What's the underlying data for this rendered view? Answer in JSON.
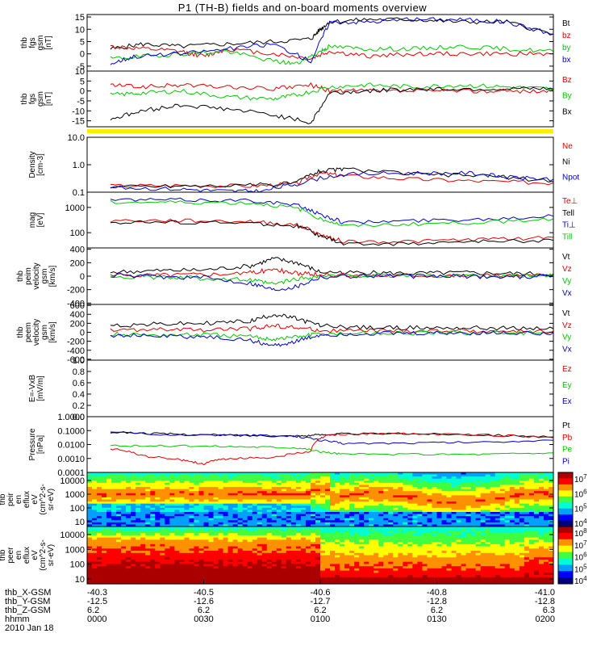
{
  "title": "P1 (TH-B) fields and on-board moments overview",
  "colors": {
    "black": "#000000",
    "red": "#e00000",
    "green": "#00c800",
    "blue": "#0000c8",
    "yellow": "#ffee00",
    "spec_bg": "#000033"
  },
  "chart_data": [
    {
      "type": "line",
      "panel": "fgs_gsm",
      "ylabel": [
        "thb",
        "fgs",
        "gsm",
        "[nT]"
      ],
      "yticks": [
        "15",
        "10",
        "5",
        "0",
        "-5"
      ],
      "ylim": [
        -7,
        16
      ],
      "series": [
        {
          "name": "Bt",
          "color": "#000000",
          "x": [
            0.05,
            0.12,
            0.2,
            0.3,
            0.4,
            0.48,
            0.5,
            0.52,
            0.6,
            0.7,
            0.8,
            0.9,
            1.0
          ],
          "y": [
            2,
            4,
            3,
            4,
            5,
            6,
            10,
            13,
            14,
            14,
            13,
            13,
            8
          ]
        },
        {
          "name": "bz",
          "color": "#e00000",
          "x": [
            0.05,
            0.12,
            0.2,
            0.25,
            0.3,
            0.4,
            0.48,
            0.52,
            0.6,
            0.7,
            0.8,
            0.9,
            1.0
          ],
          "y": [
            3,
            2,
            1,
            -1,
            2,
            0,
            -2,
            1,
            -1,
            0,
            0,
            0,
            0
          ]
        },
        {
          "name": "by",
          "color": "#00c800",
          "x": [
            0.05,
            0.12,
            0.2,
            0.3,
            0.4,
            0.45,
            0.5,
            0.52,
            0.6,
            0.7,
            0.8,
            0.9,
            1.0
          ],
          "y": [
            -2,
            -1,
            0,
            1,
            -3,
            -4,
            1,
            3,
            2,
            2,
            3,
            2,
            1
          ]
        },
        {
          "name": "bx",
          "color": "#0000c8",
          "x": [
            0.05,
            0.1,
            0.2,
            0.3,
            0.4,
            0.48,
            0.52,
            0.6,
            0.7,
            0.8,
            0.9,
            1.0
          ],
          "y": [
            -4,
            -1,
            0,
            2,
            4,
            -3,
            13,
            13,
            14,
            14,
            13,
            8
          ]
        }
      ],
      "legend": [
        {
          "label": "Bt",
          "color": "#000000"
        },
        {
          "label": "bz",
          "color": "#e00000"
        },
        {
          "label": "by",
          "color": "#00c800"
        },
        {
          "label": "bx",
          "color": "#0000c8"
        }
      ]
    },
    {
      "type": "line",
      "panel": "fgs_gsm2",
      "ylabel": [
        "thb",
        "fgs",
        "gsm",
        "[nT]"
      ],
      "yticks": [
        "10",
        "5",
        "0",
        "-5",
        "-10",
        "-15"
      ],
      "ylim": [
        -18,
        10
      ],
      "series": [
        {
          "name": "Bz",
          "color": "#e00000",
          "x": [
            0.05,
            0.12,
            0.2,
            0.3,
            0.4,
            0.48,
            0.52,
            0.6,
            0.7,
            0.8,
            0.9,
            1.0
          ],
          "y": [
            3,
            2,
            3,
            2,
            1,
            3,
            0,
            0,
            0,
            0,
            0,
            0
          ]
        },
        {
          "name": "By",
          "color": "#00c800",
          "x": [
            0.05,
            0.12,
            0.2,
            0.3,
            0.4,
            0.45,
            0.52,
            0.6,
            0.7,
            0.8,
            0.9,
            1.0
          ],
          "y": [
            -2,
            -1,
            0,
            -3,
            -4,
            -2,
            2,
            3,
            2,
            3,
            2,
            1
          ]
        },
        {
          "name": "Bx",
          "color": "#000000",
          "x": [
            0.05,
            0.12,
            0.2,
            0.3,
            0.4,
            0.48,
            0.52,
            0.6,
            0.7,
            0.8,
            0.9,
            1.0
          ],
          "y": [
            -14,
            -10,
            -7,
            -9,
            -12,
            -16,
            -1,
            0,
            1,
            1,
            1,
            1
          ]
        }
      ],
      "legend": [
        {
          "label": "Bz",
          "color": "#e00000"
        },
        {
          "label": "By",
          "color": "#00c800"
        },
        {
          "label": "Bx",
          "color": "#000000"
        }
      ]
    },
    {
      "type": "line",
      "panel": "density",
      "log": true,
      "ylabel": [
        "Density",
        "[cm-3]"
      ],
      "yticks": [
        "10.0",
        "1.0",
        "0.1"
      ],
      "ylim": [
        0.1,
        10
      ],
      "series": [
        {
          "name": "Ne",
          "color": "#e00000",
          "x": [
            0.05,
            0.2,
            0.35,
            0.45,
            0.5,
            0.55,
            0.7,
            0.85,
            1.0
          ],
          "y": [
            0.17,
            0.18,
            0.17,
            0.2,
            0.5,
            0.4,
            0.3,
            0.25,
            0.22
          ]
        },
        {
          "name": "Ni",
          "color": "#000000",
          "x": [
            0.05,
            0.2,
            0.35,
            0.45,
            0.5,
            0.55,
            0.7,
            0.85,
            1.0
          ],
          "y": [
            0.16,
            0.17,
            0.18,
            0.22,
            0.6,
            0.7,
            0.45,
            0.4,
            0.25
          ]
        },
        {
          "name": "Npot",
          "color": "#0000c8",
          "x": [
            0.05,
            0.2,
            0.3,
            0.38,
            0.45,
            0.55,
            0.7,
            0.82,
            0.9,
            1.0
          ],
          "y": [
            0.15,
            0.13,
            0.11,
            0.11,
            0.2,
            0.45,
            0.5,
            0.5,
            0.35,
            0.3
          ]
        }
      ],
      "legend": [
        {
          "label": "Ne",
          "color": "#e00000"
        },
        {
          "label": "Ni",
          "color": "#000000"
        },
        {
          "label": "Npot",
          "color": "#0000c8"
        }
      ]
    },
    {
      "type": "line",
      "panel": "temperature",
      "log": true,
      "ylabel": [
        "mag",
        "[eV]"
      ],
      "yticks": [
        "1000",
        "100"
      ],
      "ylim": [
        25,
        4000
      ],
      "series": [
        {
          "name": "Te⊥",
          "color": "#e00000",
          "x": [
            0.05,
            0.2,
            0.35,
            0.45,
            0.5,
            0.55,
            0.7,
            0.85,
            1.0
          ],
          "y": [
            300,
            300,
            280,
            200,
            80,
            45,
            45,
            55,
            65
          ]
        },
        {
          "name": "Tell",
          "color": "#000000",
          "x": [
            0.05,
            0.2,
            0.35,
            0.45,
            0.5,
            0.55,
            0.7,
            0.85,
            1.0
          ],
          "y": [
            260,
            260,
            240,
            180,
            70,
            35,
            38,
            45,
            50
          ]
        },
        {
          "name": "Ti⊥",
          "color": "#0000c8",
          "x": [
            0.05,
            0.2,
            0.35,
            0.45,
            0.5,
            0.55,
            0.7,
            0.85,
            1.0
          ],
          "y": [
            2000,
            2000,
            1900,
            1200,
            500,
            250,
            300,
            350,
            450
          ]
        },
        {
          "name": "Till",
          "color": "#00c800",
          "x": [
            0.05,
            0.2,
            0.35,
            0.45,
            0.5,
            0.55,
            0.7,
            0.85,
            1.0
          ],
          "y": [
            1600,
            1600,
            1500,
            900,
            350,
            180,
            220,
            260,
            350
          ]
        }
      ],
      "legend": [
        {
          "label": "Te⊥",
          "color": "#e00000"
        },
        {
          "label": "Tell",
          "color": "#000000"
        },
        {
          "label": "Ti⊥",
          "color": "#0000c8"
        },
        {
          "label": "Till",
          "color": "#00c800"
        }
      ]
    },
    {
      "type": "line",
      "panel": "velocity",
      "ylabel": [
        "thb",
        "peim",
        "velocity",
        "gsm",
        "[km/s]"
      ],
      "yticks": [
        "400",
        "200",
        "0",
        "-200",
        "-400"
      ],
      "ylim": [
        -420,
        420
      ],
      "series": [
        {
          "name": "Vt",
          "color": "#000000",
          "x": [
            0.05,
            0.15,
            0.25,
            0.35,
            0.4,
            0.45,
            0.5,
            0.6,
            0.7,
            0.8,
            0.9,
            1.0
          ],
          "y": [
            60,
            80,
            90,
            150,
            260,
            200,
            60,
            50,
            40,
            50,
            40,
            30
          ]
        },
        {
          "name": "Vz",
          "color": "#e00000",
          "x": [
            0.05,
            0.15,
            0.25,
            0.35,
            0.4,
            0.45,
            0.5,
            0.6,
            0.7,
            0.8,
            0.9,
            1.0
          ],
          "y": [
            10,
            20,
            30,
            50,
            100,
            40,
            20,
            10,
            20,
            10,
            10,
            5
          ]
        },
        {
          "name": "Vy",
          "color": "#00c800",
          "x": [
            0.05,
            0.15,
            0.25,
            0.35,
            0.4,
            0.45,
            0.5,
            0.6,
            0.7,
            0.8,
            0.9,
            1.0
          ],
          "y": [
            0,
            -20,
            -30,
            -60,
            -120,
            -40,
            0,
            10,
            0,
            10,
            0,
            5
          ]
        },
        {
          "name": "Vx",
          "color": "#0000c8",
          "x": [
            0.05,
            0.15,
            0.25,
            0.35,
            0.4,
            0.45,
            0.5,
            0.6,
            0.7,
            0.8,
            0.9,
            1.0
          ],
          "y": [
            10,
            -10,
            -20,
            -100,
            -200,
            -150,
            -10,
            10,
            0,
            0,
            -10,
            0
          ]
        }
      ],
      "legend": [
        {
          "label": "Vt",
          "color": "#000000"
        },
        {
          "label": "Vz",
          "color": "#e00000"
        },
        {
          "label": "Vy",
          "color": "#00c800"
        },
        {
          "label": "Vx",
          "color": "#0000c8"
        }
      ]
    },
    {
      "type": "line",
      "panel": "velocity2",
      "ylabel": [
        "thb",
        "peem",
        "velocity",
        "gsm",
        "[km/s]"
      ],
      "yticks": [
        "600",
        "400",
        "200",
        "0",
        "-200",
        "-400",
        "-600"
      ],
      "ylim": [
        -620,
        620
      ],
      "series": [
        {
          "name": "Vt",
          "color": "#000000",
          "x": [
            0.05,
            0.15,
            0.25,
            0.35,
            0.4,
            0.45,
            0.5,
            0.6,
            0.7,
            0.8,
            0.9,
            1.0
          ],
          "y": [
            150,
            180,
            200,
            250,
            400,
            300,
            150,
            100,
            100,
            100,
            90,
            80
          ]
        },
        {
          "name": "Vz",
          "color": "#e00000",
          "x": [
            0.05,
            0.15,
            0.25,
            0.35,
            0.4,
            0.45,
            0.5,
            0.6,
            0.7,
            0.8,
            0.9,
            1.0
          ],
          "y": [
            40,
            60,
            50,
            80,
            150,
            100,
            40,
            30,
            30,
            30,
            20,
            20
          ]
        },
        {
          "name": "Vy",
          "color": "#00c800",
          "x": [
            0.05,
            0.15,
            0.25,
            0.35,
            0.4,
            0.45,
            0.5,
            0.6,
            0.7,
            0.8,
            0.9,
            1.0
          ],
          "y": [
            -40,
            -60,
            -50,
            -100,
            -150,
            -100,
            -30,
            -20,
            -20,
            -10,
            -10,
            -10
          ]
        },
        {
          "name": "Vx",
          "color": "#0000c8",
          "x": [
            0.05,
            0.15,
            0.25,
            0.35,
            0.4,
            0.45,
            0.5,
            0.6,
            0.7,
            0.8,
            0.9,
            1.0
          ],
          "y": [
            -60,
            -80,
            -100,
            -180,
            -300,
            -200,
            -60,
            -30,
            -30,
            -20,
            -20,
            -10
          ]
        }
      ],
      "legend": [
        {
          "label": "Vt",
          "color": "#000000"
        },
        {
          "label": "Vz",
          "color": "#e00000"
        },
        {
          "label": "Vy",
          "color": "#00c800"
        },
        {
          "label": "Vx",
          "color": "#0000c8"
        }
      ]
    },
    {
      "type": "line",
      "panel": "efield",
      "ylabel": [
        "E=-VxB",
        "[mV/m]"
      ],
      "yticks": [
        "1.0",
        "0.8",
        "0.6",
        "0.4",
        "0.2",
        "0.0"
      ],
      "ylim": [
        0,
        1
      ],
      "series": [],
      "legend": [
        {
          "label": "Ez",
          "color": "#e00000"
        },
        {
          "label": "Ey",
          "color": "#00c800"
        },
        {
          "label": "Ex",
          "color": "#0000c8"
        }
      ]
    },
    {
      "type": "line",
      "panel": "pressure",
      "log": true,
      "ylabel": [
        "Pressure",
        "[nPa]"
      ],
      "yticks": [
        "1.0000",
        "0.1000",
        "0.0100",
        "0.0010",
        "0.0001"
      ],
      "ylim": [
        0.0001,
        1
      ],
      "series": [
        {
          "name": "Pt",
          "color": "#000000",
          "x": [
            0.05,
            0.15,
            0.25,
            0.35,
            0.45,
            0.5,
            0.55,
            0.7,
            0.85,
            1.0
          ],
          "y": [
            0.08,
            0.06,
            0.05,
            0.045,
            0.04,
            0.05,
            0.06,
            0.06,
            0.05,
            0.035
          ]
        },
        {
          "name": "Pb",
          "color": "#e00000",
          "x": [
            0.05,
            0.12,
            0.2,
            0.25,
            0.3,
            0.4,
            0.48,
            0.52,
            0.6,
            0.7,
            0.85,
            1.0
          ],
          "y": [
            0.005,
            0.0015,
            0.0008,
            0.0004,
            0.001,
            0.0012,
            0.003,
            0.05,
            0.06,
            0.06,
            0.05,
            0.03
          ]
        },
        {
          "name": "Pe",
          "color": "#00c800",
          "x": [
            0.05,
            0.2,
            0.35,
            0.45,
            0.5,
            0.55,
            0.7,
            0.85,
            1.0
          ],
          "y": [
            0.008,
            0.008,
            0.007,
            0.006,
            0.003,
            0.002,
            0.002,
            0.002,
            0.0025
          ]
        },
        {
          "name": "Pi",
          "color": "#0000c8",
          "x": [
            0.05,
            0.2,
            0.35,
            0.45,
            0.5,
            0.55,
            0.7,
            0.85,
            1.0
          ],
          "y": [
            0.07,
            0.05,
            0.045,
            0.04,
            0.02,
            0.012,
            0.013,
            0.015,
            0.02
          ]
        }
      ],
      "legend": [
        {
          "label": "Pt",
          "color": "#000000"
        },
        {
          "label": "Pb",
          "color": "#e00000"
        },
        {
          "label": "Pe",
          "color": "#00c800"
        },
        {
          "label": "Pi",
          "color": "#0000c8"
        }
      ]
    },
    {
      "type": "heatmap",
      "panel": "ion_spectrogram",
      "ylabel": [
        "thb",
        "peir",
        "en",
        "eflux",
        "eV",
        "(cm^2-s-",
        "sr-eV)"
      ],
      "yticks": [
        "10000",
        "1000",
        "100",
        "10"
      ],
      "colorbar_ticks": [
        "10^7",
        "10^6",
        "10^5",
        "10^4"
      ]
    },
    {
      "type": "heatmap",
      "panel": "electron_spectrogram",
      "ylabel": [
        "thb",
        "peer",
        "en",
        "eflux",
        "eV",
        "(cm^2-s-",
        "sr-eV)"
      ],
      "yticks": [
        "10000",
        "1000",
        "100",
        "10"
      ],
      "colorbar_ticks": [
        "10^8",
        "10^7",
        "10^6",
        "10^5",
        "10^4"
      ]
    }
  ],
  "orbit_labels": [
    "thb_X-GSM",
    "thb_Y-GSM",
    "thb_Z-GSM",
    "hhmm",
    "2010 Jan 18"
  ],
  "orbit_columns": [
    {
      "x": "-40.3",
      "y": "-12.5",
      "z": "6.2",
      "t": "0000"
    },
    {
      "x": "-40.5",
      "y": "-12.6",
      "z": "6.2",
      "t": "0030"
    },
    {
      "x": "-40.6",
      "y": "-12.7",
      "z": "6.2",
      "t": "0100"
    },
    {
      "x": "-40.8",
      "y": "-12.8",
      "z": "6.2",
      "t": "0130"
    },
    {
      "x": "-41.0",
      "y": "-12.8",
      "z": "6.3",
      "t": "0200"
    }
  ]
}
